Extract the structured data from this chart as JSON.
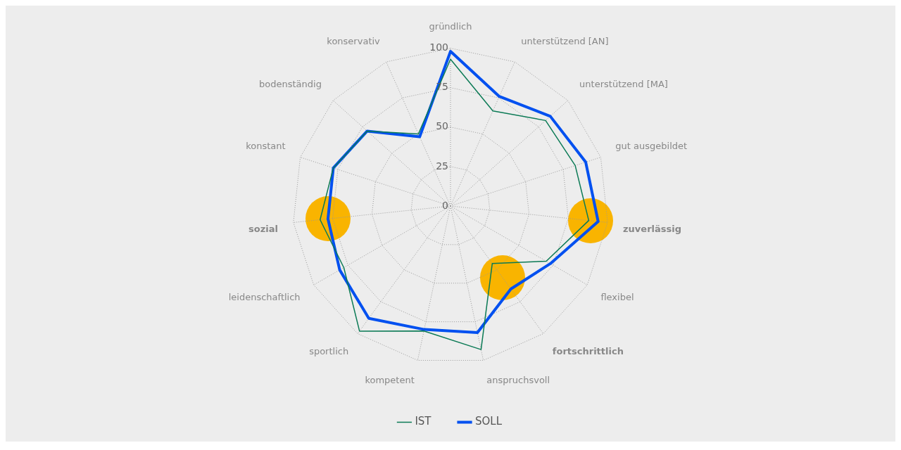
{
  "chart_data": {
    "type": "radar",
    "categories": [
      "gründlich",
      "unterstützend [AN]",
      "unterstützend [MA]",
      "gut ausgebildet",
      "zuverlässig",
      "flexibel",
      "fortschrittlich",
      "anspruchsvoll",
      "kompetent",
      "sportlich",
      "leidenschaftlich",
      "sozial",
      "konstant",
      "bodenständig",
      "konservativ"
    ],
    "series": [
      {
        "name": "IST",
        "color": "#0b7a55",
        "values": [
          93,
          66,
          81,
          83,
          88,
          70,
          45,
          93,
          81,
          98,
          78,
          83,
          78,
          71,
          50
        ]
      },
      {
        "name": "SOLL",
        "color": "#0050f0",
        "values": [
          98,
          76,
          85,
          90,
          94,
          73,
          65,
          82,
          80,
          88,
          81,
          78,
          78,
          71,
          48
        ]
      }
    ],
    "ylim": [
      0,
      100
    ],
    "yticks": [
      0,
      25,
      50,
      75,
      100
    ],
    "grid": true,
    "legend": "bottom",
    "marker": "none"
  }
}
